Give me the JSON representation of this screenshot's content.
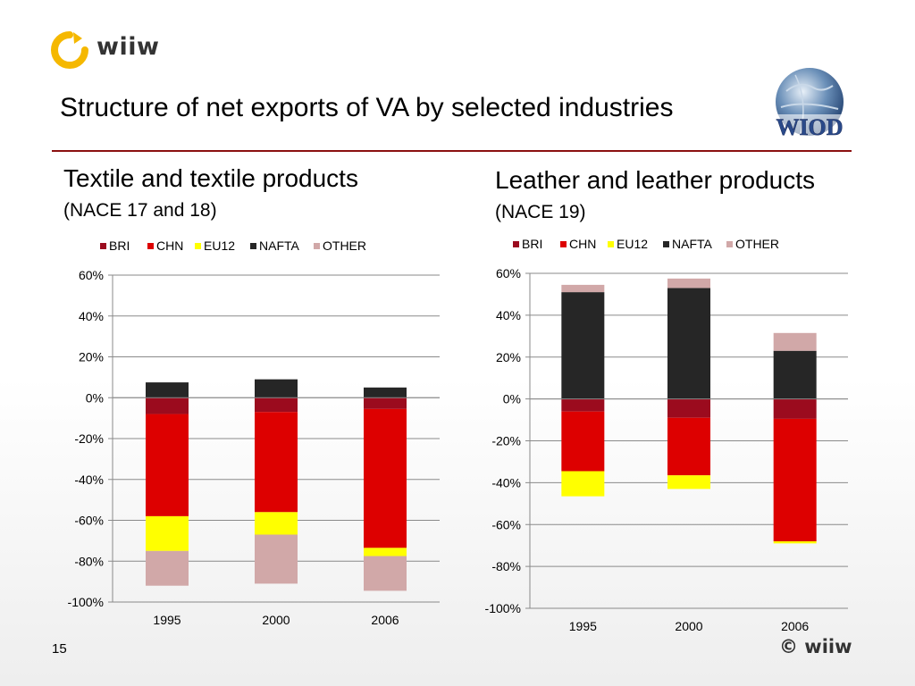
{
  "header": {
    "logo_text": "wiiw",
    "title": "Structure of net exports of VA by selected industries",
    "wiod_logo_text": "WIOD"
  },
  "panels": [
    {
      "title": "Textile and textile products",
      "subtitle": "(NACE 17 and 18)"
    },
    {
      "title": "Leather and leather products",
      "subtitle": "(NACE 19)"
    }
  ],
  "footer": {
    "page_number": "15",
    "copyright": "© wiiw"
  },
  "colors": {
    "BRI": "#9b0b1e",
    "CHN": "#dd0000",
    "EU12": "#ffff00",
    "NAFTA": "#262626",
    "OTHER": "#d1a8a8",
    "title_rule": "#8b1010"
  },
  "chart_data": [
    {
      "type": "bar",
      "stacked": true,
      "title": "",
      "categories": [
        "1995",
        "2000",
        "2006"
      ],
      "legend_position": "top",
      "ylim": [
        -100,
        60
      ],
      "yticks": [
        60,
        40,
        20,
        0,
        -20,
        -40,
        -60,
        -80,
        -100
      ],
      "ytick_labels": [
        "60%",
        "40%",
        "20%",
        "0%",
        "-20%",
        "-40%",
        "-60%",
        "-80%",
        "-100%"
      ],
      "grid": true,
      "series": [
        {
          "name": "BRI",
          "values": [
            -8,
            -7,
            -5.5
          ]
        },
        {
          "name": "CHN",
          "values": [
            -50,
            -49,
            -68
          ]
        },
        {
          "name": "EU12",
          "values": [
            -17,
            -11,
            -4
          ]
        },
        {
          "name": "NAFTA",
          "values": [
            7.5,
            9,
            5
          ]
        },
        {
          "name": "OTHER",
          "values": [
            -17,
            -24,
            -17
          ]
        }
      ]
    },
    {
      "type": "bar",
      "stacked": true,
      "title": "",
      "categories": [
        "1995",
        "2000",
        "2006"
      ],
      "legend_position": "top",
      "ylim": [
        -100,
        60
      ],
      "yticks": [
        60,
        40,
        20,
        0,
        -20,
        -40,
        -60,
        -80,
        -100
      ],
      "ytick_labels": [
        "60%",
        "40%",
        "20%",
        "0%",
        "-20%",
        "-40%",
        "-60%",
        "-80%",
        "-100%"
      ],
      "grid": true,
      "series": [
        {
          "name": "BRI",
          "values": [
            -6,
            -9,
            -9.5
          ]
        },
        {
          "name": "CHN",
          "values": [
            -28.5,
            -27.5,
            -58.5
          ]
        },
        {
          "name": "EU12",
          "values": [
            -12,
            -6.5,
            -1
          ]
        },
        {
          "name": "NAFTA",
          "values": [
            51,
            53,
            23
          ]
        },
        {
          "name": "OTHER",
          "values": [
            3.5,
            4.5,
            8.5
          ]
        }
      ]
    }
  ]
}
